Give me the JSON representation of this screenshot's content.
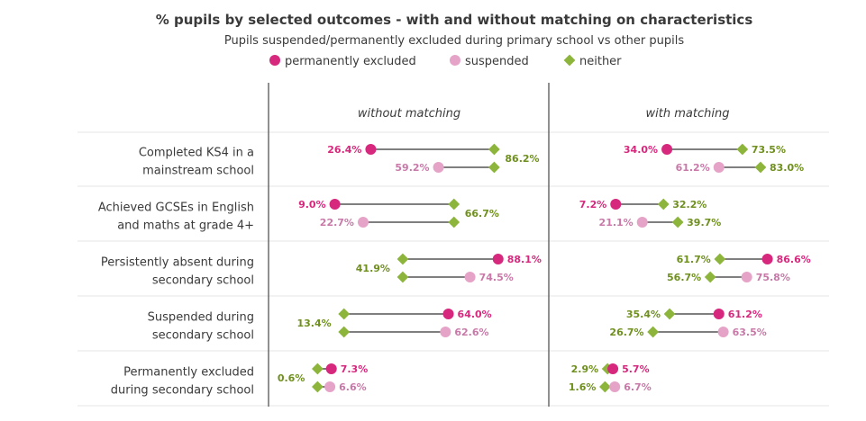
{
  "chart_data": {
    "type": "dumbbell",
    "title": "% pupils by selected outcomes - with and without matching on characteristics",
    "subtitle": "Pupils suspended/permanently excluded during primary school vs other pupils",
    "legend": [
      {
        "name": "permanently excluded",
        "color": "#d6287d",
        "marker": "circle"
      },
      {
        "name": "suspended",
        "color": "#e6a3c8",
        "marker": "circle"
      },
      {
        "name": "neither",
        "color": "#8db53c",
        "marker": "diamond"
      }
    ],
    "legend_position": "top-center",
    "categories": [
      [
        "Completed KS4 in a",
        "mainstream school"
      ],
      [
        "Achieved GCSEs in English",
        "and maths at grade 4+"
      ],
      [
        "Persistently absent during",
        "secondary school"
      ],
      [
        "Suspended during",
        "secondary school"
      ],
      [
        "Permanently excluded",
        "during secondary school"
      ]
    ],
    "xlim": [
      0,
      100
    ],
    "colors": {
      "permanently_excluded": "#d6287d",
      "suspended": "#e6a3c8",
      "neither": "#8db53c",
      "neither_text": "#6f8f1e",
      "line": "#555555",
      "grid": "#e6e6e6",
      "divider": "#555555"
    },
    "panels": [
      {
        "title": "without matching",
        "rows": [
          {
            "permanently_excluded": 26.4,
            "suspended": 59.2,
            "neither": 86.2
          },
          {
            "permanently_excluded": 9.0,
            "suspended": 22.7,
            "neither": 66.7
          },
          {
            "permanently_excluded": 88.1,
            "suspended": 74.5,
            "neither": 41.9
          },
          {
            "permanently_excluded": 64.0,
            "suspended": 62.6,
            "neither": 13.4
          },
          {
            "permanently_excluded": 7.3,
            "suspended": 6.6,
            "neither": 0.6
          }
        ]
      },
      {
        "title": "with matching",
        "rows": [
          {
            "permanently_excluded": 34.0,
            "suspended": 61.2,
            "neither_vs_pe": 73.5,
            "neither_vs_s": 83.0
          },
          {
            "permanently_excluded": 7.2,
            "suspended": 21.1,
            "neither_vs_pe": 32.2,
            "neither_vs_s": 39.7
          },
          {
            "permanently_excluded": 86.6,
            "suspended": 75.8,
            "neither_vs_pe": 61.7,
            "neither_vs_s": 56.7
          },
          {
            "permanently_excluded": 61.2,
            "suspended": 63.5,
            "neither_vs_pe": 35.4,
            "neither_vs_s": 26.7
          },
          {
            "permanently_excluded": 5.7,
            "suspended": 6.7,
            "neither_vs_pe": 2.9,
            "neither_vs_s": 1.6
          }
        ]
      }
    ]
  }
}
